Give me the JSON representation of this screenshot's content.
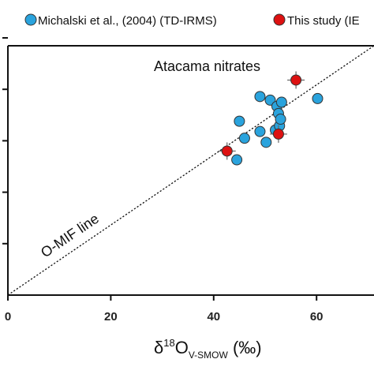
{
  "chart_data": {
    "type": "scatter",
    "xlim": [
      0,
      70
    ],
    "ylim": [
      0,
      60
    ],
    "x_ticks": [
      0,
      20,
      40,
      60
    ],
    "y_ticks": [
      0,
      10,
      20,
      30,
      40,
      50
    ],
    "x_tick_labels": [
      "0",
      "20",
      "40",
      "60"
    ],
    "xlabel": {
      "prefix": "δ",
      "sup": "18",
      "main": "O",
      "sub": "V-SMOW",
      "unit": " (‰)"
    },
    "legend": {
      "placement": "top",
      "entries": [
        {
          "label": "Michalski et al., (2004) (TD-IRMS)",
          "color": "#2aa3dd"
        },
        {
          "label": "This study (IE",
          "color": "#dd1111"
        }
      ]
    },
    "annotations": {
      "atacama": "Atacama nitrates",
      "omif": "O-MIF line"
    },
    "omif_line": {
      "x": [
        0,
        71.2
      ],
      "y": [
        0,
        48.5
      ],
      "style": "dotted"
    },
    "series": [
      {
        "name": "Michalski et al., (2004) (TD-IRMS)",
        "color": "#2aa3dd",
        "points": [
          {
            "x": 44.5,
            "y": 26.3
          },
          {
            "x": 45.0,
            "y": 33.8
          },
          {
            "x": 46.0,
            "y": 30.5
          },
          {
            "x": 49.0,
            "y": 31.8
          },
          {
            "x": 49.0,
            "y": 38.6
          },
          {
            "x": 50.2,
            "y": 29.7
          },
          {
            "x": 51.0,
            "y": 37.9
          },
          {
            "x": 52.0,
            "y": 32.1
          },
          {
            "x": 52.3,
            "y": 36.7
          },
          {
            "x": 52.6,
            "y": 35.3
          },
          {
            "x": 52.8,
            "y": 32.9
          },
          {
            "x": 53.0,
            "y": 34.2
          },
          {
            "x": 53.2,
            "y": 37.5
          },
          {
            "x": 60.2,
            "y": 38.2
          }
        ]
      },
      {
        "name": "This study (IE",
        "color": "#dd1111",
        "points": [
          {
            "x": 42.6,
            "y": 28.0
          },
          {
            "x": 52.6,
            "y": 31.3
          },
          {
            "x": 56.0,
            "y": 41.8
          }
        ]
      }
    ]
  }
}
